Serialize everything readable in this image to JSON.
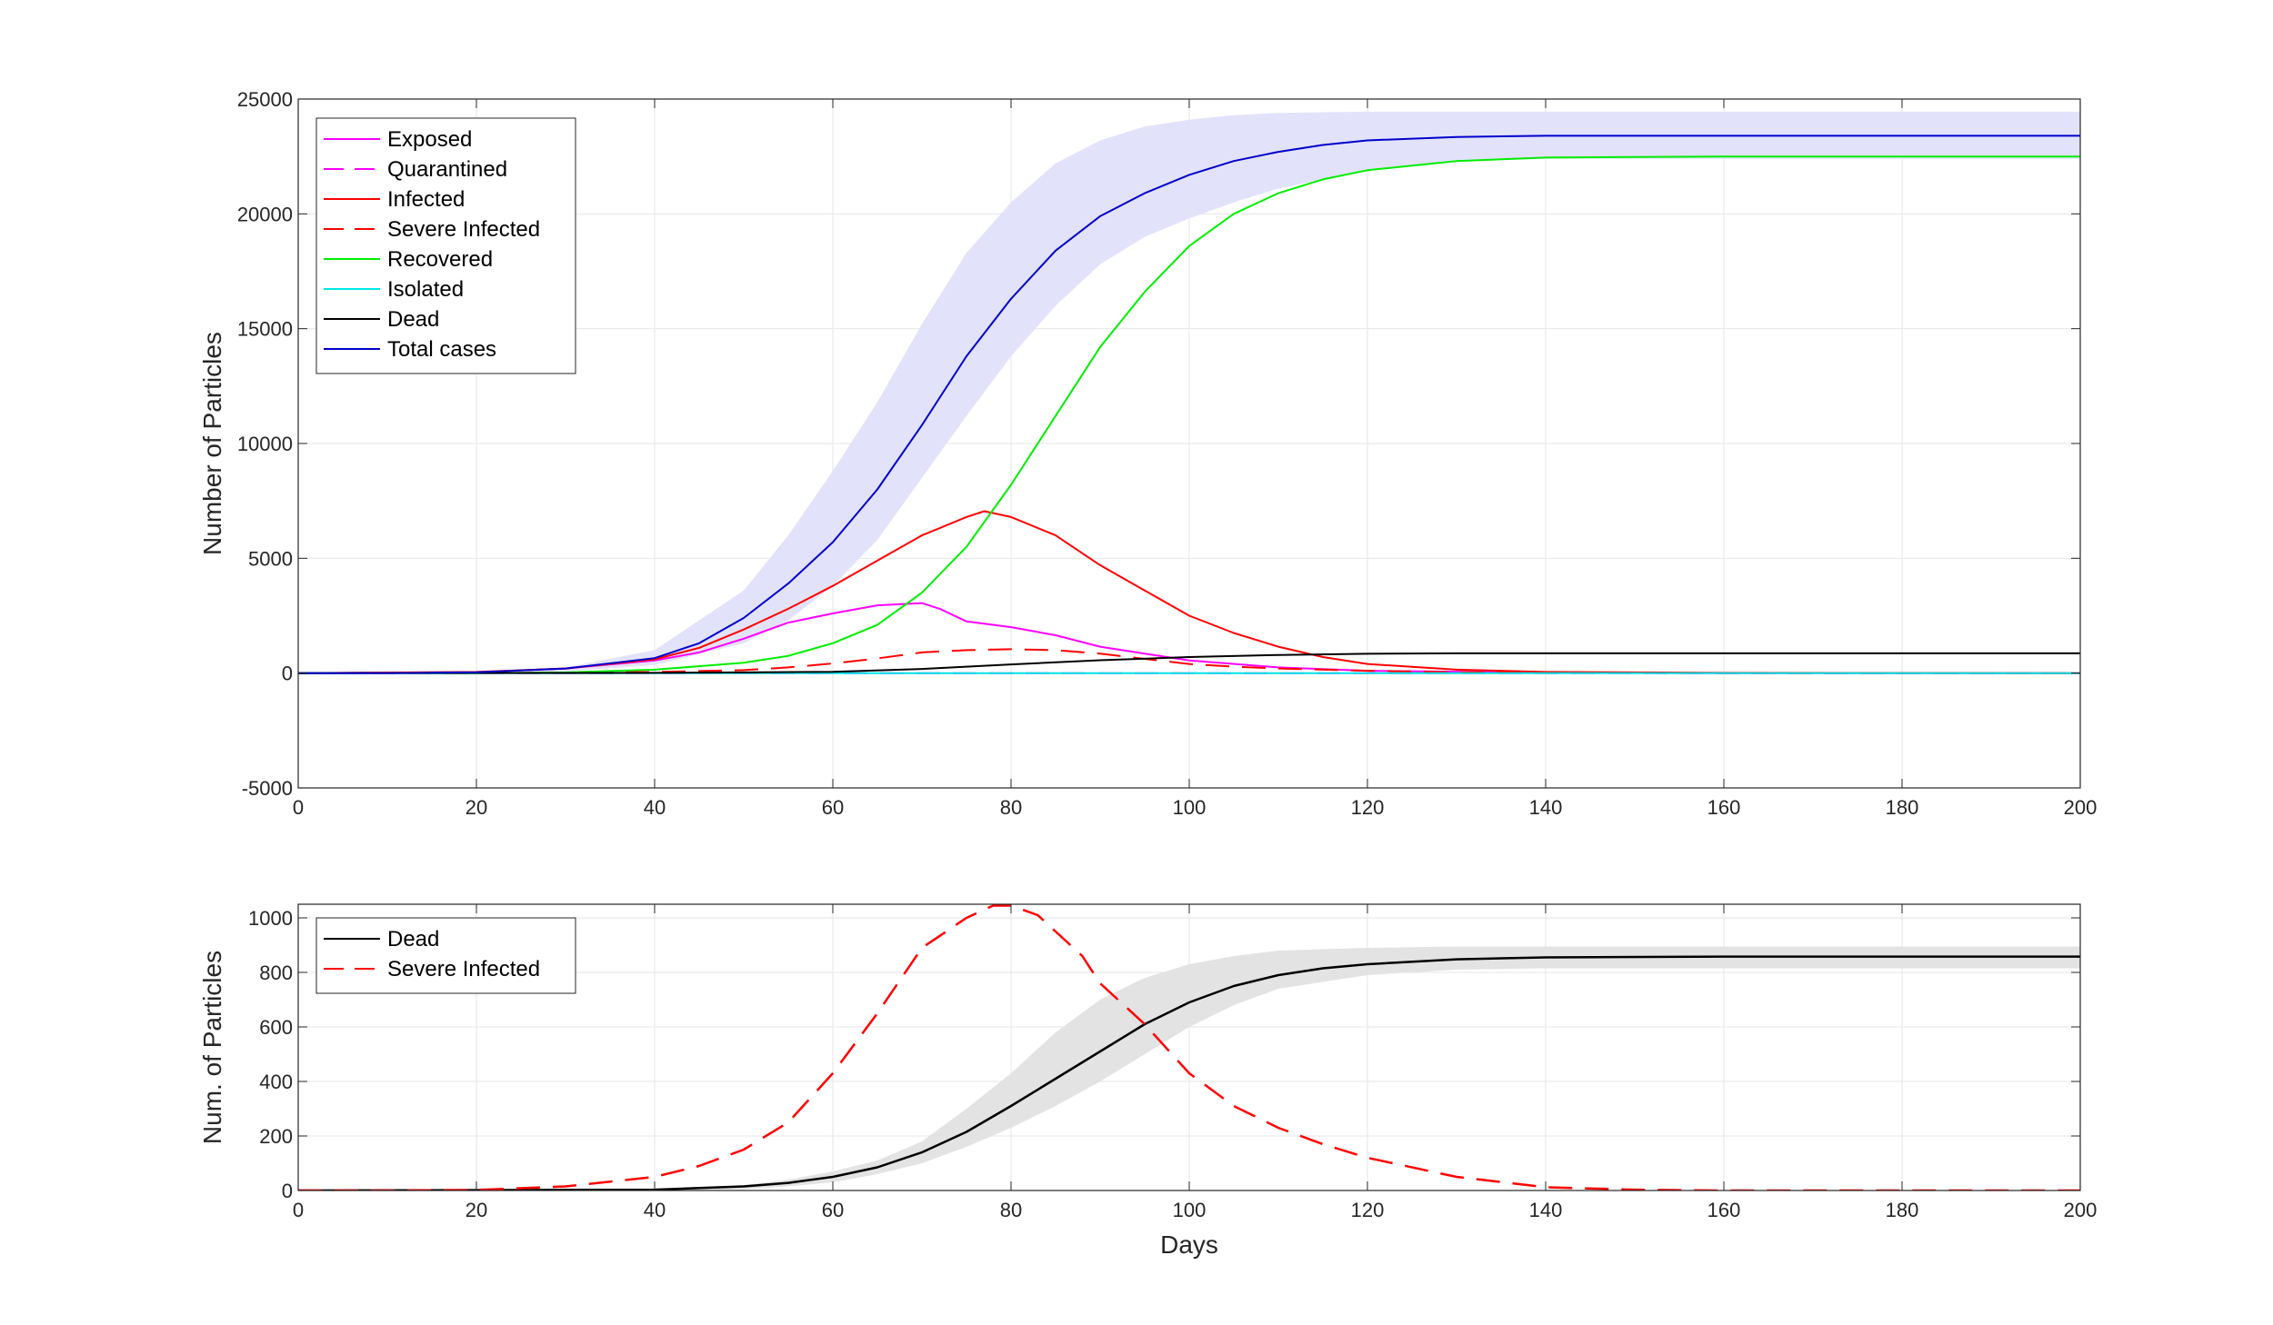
{
  "chart_data": [
    {
      "type": "line",
      "title": "",
      "xlabel": "",
      "ylabel": "Number of Particles",
      "xlim": [
        0,
        200
      ],
      "ylim": [
        -5000,
        25000
      ],
      "xticks": [
        0,
        20,
        40,
        60,
        80,
        100,
        120,
        140,
        160,
        180,
        200
      ],
      "yticks": [
        -5000,
        0,
        5000,
        10000,
        15000,
        20000,
        25000
      ],
      "grid": true,
      "legend_position": "top-left",
      "band": {
        "color": "#e2e2fb",
        "x": [
          0,
          10,
          20,
          30,
          40,
          50,
          55,
          60,
          65,
          70,
          75,
          80,
          85,
          90,
          95,
          100,
          105,
          110,
          120,
          130,
          140,
          160,
          180,
          200
        ],
        "lower": [
          0,
          0,
          0,
          80,
          350,
          1300,
          2300,
          3800,
          5800,
          8500,
          11200,
          13800,
          16000,
          17800,
          19000,
          19800,
          20500,
          21100,
          21900,
          22300,
          22400,
          22400,
          22400,
          22400
        ],
        "upper": [
          0,
          0,
          50,
          250,
          1000,
          3600,
          6000,
          8800,
          11800,
          15200,
          18300,
          20500,
          22200,
          23200,
          23800,
          24100,
          24300,
          24400,
          24450,
          24450,
          24450,
          24450,
          24450,
          24450
        ]
      },
      "series": [
        {
          "name": "Exposed",
          "color": "#ff00ff",
          "dash": "solid",
          "x": [
            0,
            20,
            30,
            40,
            45,
            50,
            55,
            60,
            65,
            70,
            72,
            75,
            80,
            85,
            90,
            95,
            100,
            110,
            120,
            140,
            160,
            200
          ],
          "values": [
            0,
            40,
            200,
            550,
            900,
            1500,
            2200,
            2600,
            2950,
            3050,
            2800,
            2250,
            2000,
            1650,
            1150,
            850,
            550,
            250,
            100,
            20,
            0,
            0
          ]
        },
        {
          "name": "Quarantined",
          "color": "#ff00ff",
          "dash": "long",
          "x": [
            0,
            20,
            40,
            60,
            80,
            100,
            140,
            200
          ],
          "values": [
            0,
            0,
            0,
            0,
            0,
            0,
            0,
            0
          ]
        },
        {
          "name": "Infected",
          "color": "#ff0000",
          "dash": "solid",
          "x": [
            0,
            20,
            30,
            40,
            45,
            50,
            55,
            60,
            65,
            70,
            75,
            77,
            80,
            85,
            90,
            95,
            100,
            105,
            110,
            115,
            120,
            130,
            140,
            160,
            200
          ],
          "values": [
            0,
            50,
            200,
            600,
            1100,
            1900,
            2800,
            3800,
            4900,
            6000,
            6800,
            7050,
            6800,
            6000,
            4700,
            3600,
            2500,
            1750,
            1150,
            700,
            400,
            150,
            50,
            10,
            0
          ]
        },
        {
          "name": "Severe Infected",
          "color": "#ff0000",
          "dash": "long",
          "x": [
            0,
            20,
            30,
            40,
            50,
            55,
            60,
            65,
            70,
            75,
            80,
            85,
            90,
            95,
            100,
            105,
            110,
            120,
            130,
            140,
            160,
            200
          ],
          "values": [
            0,
            0,
            20,
            50,
            130,
            250,
            420,
            640,
            900,
            1000,
            1040,
            1000,
            850,
            620,
            400,
            280,
            200,
            100,
            40,
            10,
            0,
            0
          ]
        },
        {
          "name": "Recovered",
          "color": "#00ee00",
          "dash": "solid",
          "x": [
            0,
            20,
            30,
            40,
            50,
            55,
            60,
            65,
            70,
            75,
            80,
            85,
            90,
            95,
            100,
            105,
            110,
            115,
            120,
            130,
            140,
            160,
            200
          ],
          "values": [
            0,
            0,
            30,
            150,
            450,
            750,
            1300,
            2100,
            3500,
            5500,
            8200,
            11200,
            14200,
            16600,
            18600,
            20000,
            20900,
            21500,
            21900,
            22300,
            22450,
            22500,
            22500
          ]
        },
        {
          "name": "Isolated",
          "color": "#00e6e6",
          "dash": "solid",
          "x": [
            0,
            50,
            100,
            150,
            200
          ],
          "values": [
            0,
            0,
            0,
            0,
            0
          ]
        },
        {
          "name": "Dead",
          "color": "#000000",
          "dash": "solid",
          "x": [
            0,
            40,
            50,
            60,
            70,
            80,
            90,
            100,
            110,
            120,
            130,
            140,
            160,
            200
          ],
          "values": [
            0,
            10,
            30,
            60,
            180,
            380,
            560,
            700,
            790,
            840,
            860,
            860,
            860,
            860
          ]
        },
        {
          "name": "Total cases",
          "color": "#0000cc",
          "dash": "solid",
          "x": [
            0,
            10,
            20,
            30,
            40,
            45,
            50,
            55,
            60,
            65,
            70,
            75,
            80,
            85,
            90,
            95,
            100,
            105,
            110,
            115,
            120,
            130,
            140,
            160,
            200
          ],
          "values": [
            0,
            0,
            40,
            200,
            650,
            1300,
            2400,
            3900,
            5700,
            8000,
            10800,
            13800,
            16300,
            18400,
            19900,
            20900,
            21700,
            22300,
            22700,
            23000,
            23200,
            23350,
            23400,
            23400,
            23400
          ]
        }
      ]
    },
    {
      "type": "line",
      "title": "",
      "xlabel": "Days",
      "ylabel": "Num. of Particles",
      "xlim": [
        0,
        200
      ],
      "ylim": [
        0,
        1050
      ],
      "xticks": [
        0,
        20,
        40,
        60,
        80,
        100,
        120,
        140,
        160,
        180,
        200
      ],
      "yticks": [
        0,
        200,
        400,
        600,
        800,
        1000
      ],
      "grid": true,
      "legend_position": "top-left",
      "band": {
        "color": "#e3e3e3",
        "x": [
          0,
          40,
          50,
          55,
          60,
          65,
          70,
          75,
          80,
          85,
          90,
          95,
          100,
          105,
          110,
          120,
          130,
          140,
          160,
          180,
          200
        ],
        "lower": [
          0,
          0,
          5,
          15,
          30,
          60,
          100,
          160,
          230,
          310,
          400,
          500,
          600,
          680,
          740,
          790,
          810,
          815,
          815,
          815,
          815
        ],
        "upper": [
          0,
          5,
          20,
          40,
          70,
          110,
          180,
          300,
          430,
          580,
          700,
          780,
          830,
          860,
          880,
          890,
          895,
          895,
          895,
          895,
          895
        ]
      },
      "series": [
        {
          "name": "Dead",
          "color": "#000000",
          "dash": "solid",
          "x": [
            0,
            40,
            50,
            55,
            60,
            65,
            70,
            75,
            80,
            85,
            90,
            95,
            100,
            105,
            110,
            115,
            120,
            130,
            140,
            160,
            180,
            200
          ],
          "values": [
            0,
            3,
            15,
            28,
            50,
            85,
            140,
            215,
            310,
            410,
            510,
            610,
            690,
            750,
            790,
            815,
            830,
            848,
            855,
            858,
            858,
            858
          ]
        },
        {
          "name": "Severe Infected",
          "color": "#ff0000",
          "dash": "long",
          "x": [
            0,
            10,
            20,
            30,
            40,
            45,
            50,
            55,
            60,
            65,
            70,
            75,
            78,
            80,
            83,
            85,
            88,
            90,
            95,
            100,
            105,
            110,
            115,
            120,
            130,
            140,
            150,
            160,
            180,
            200
          ],
          "values": [
            0,
            0,
            2,
            15,
            50,
            90,
            150,
            250,
            430,
            650,
            890,
            1000,
            1045,
            1045,
            1010,
            950,
            860,
            760,
            610,
            430,
            310,
            230,
            170,
            120,
            50,
            12,
            3,
            0,
            0,
            0
          ]
        }
      ]
    }
  ]
}
